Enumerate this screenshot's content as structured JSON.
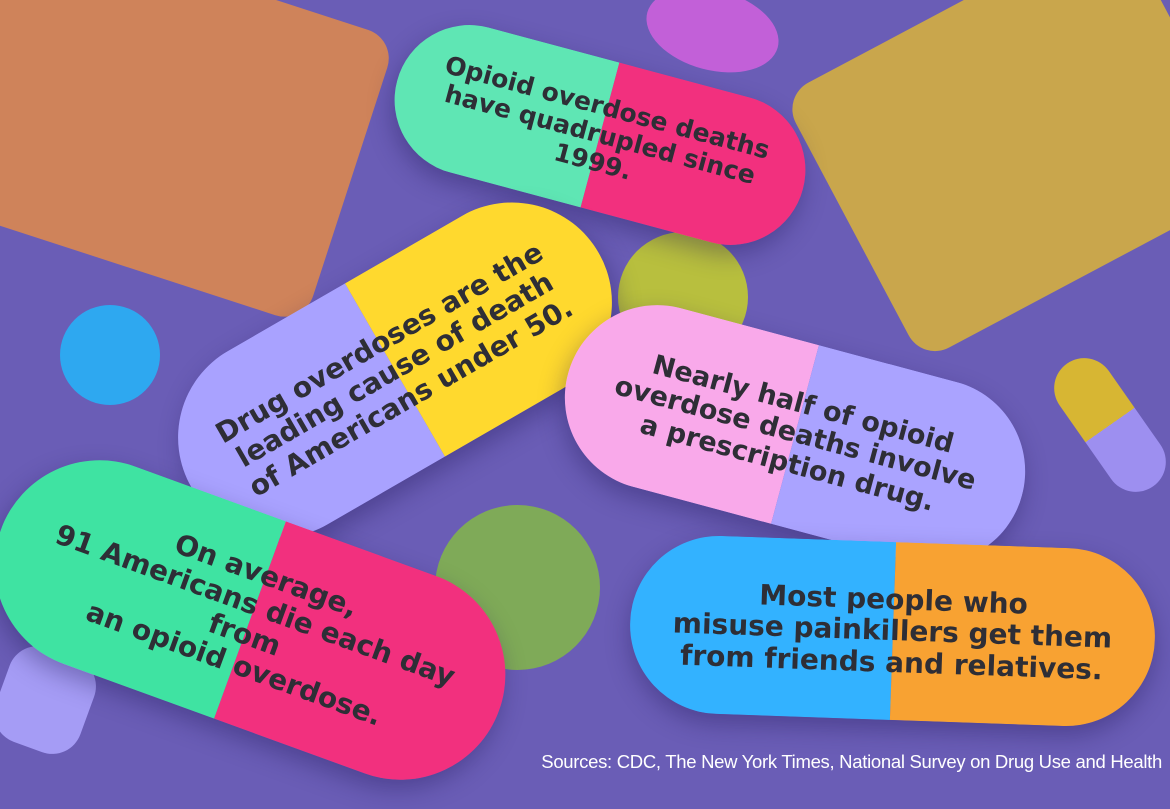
{
  "facts": [
    {
      "text": "Opioid overdose deaths\nhave quadrupled since 1999.",
      "colors": [
        "#5fe6b4",
        "#f2307e"
      ]
    },
    {
      "text": "Drug overdoses are the\nleading cause of death\nof Americans under 50.",
      "colors": [
        "#a9a2ff",
        "#ffd92e"
      ]
    },
    {
      "text": "Nearly half of opioid\noverdose deaths involve\na prescription drug.",
      "colors": [
        "#f9a9ea",
        "#aaa3ff"
      ]
    },
    {
      "text": "On average,\n91 Americans die each day from\nan opioid overdose.",
      "colors": [
        "#3fe3a2",
        "#f2307e"
      ]
    },
    {
      "text": "Most people who\nmisuse painkillers get them\nfrom friends and relatives.",
      "colors": [
        "#33b2ff",
        "#f8a232"
      ]
    }
  ],
  "sources": "Sources: CDC, The New York Times, National Survey on Drug Use and Health",
  "background": "#6a5db6"
}
